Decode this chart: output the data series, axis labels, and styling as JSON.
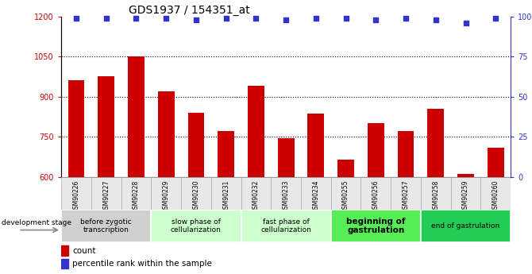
{
  "title": "GDS1937 / 154351_at",
  "samples": [
    "GSM90226",
    "GSM90227",
    "GSM90228",
    "GSM90229",
    "GSM90230",
    "GSM90231",
    "GSM90232",
    "GSM90233",
    "GSM90234",
    "GSM90255",
    "GSM90256",
    "GSM90257",
    "GSM90258",
    "GSM90259",
    "GSM90260"
  ],
  "counts": [
    960,
    975,
    1050,
    920,
    840,
    770,
    940,
    745,
    835,
    665,
    800,
    770,
    855,
    610,
    710
  ],
  "percentile_vals": [
    99,
    99,
    99,
    99,
    98,
    99,
    99,
    98,
    99,
    99,
    98,
    99,
    98,
    96,
    99
  ],
  "ylim": [
    600,
    1200
  ],
  "y2lim": [
    0,
    100
  ],
  "yticks": [
    600,
    750,
    900,
    1050,
    1200
  ],
  "y2ticks": [
    0,
    25,
    50,
    75,
    100
  ],
  "y2ticklabels": [
    "0",
    "25",
    "50",
    "75",
    "100%"
  ],
  "bar_color": "#cc0000",
  "dot_color": "#3333cc",
  "bar_width": 0.55,
  "stages": [
    {
      "label": "before zygotic\ntranscription",
      "samples": [
        "GSM90226",
        "GSM90227",
        "GSM90228"
      ],
      "color": "#d0d0d0"
    },
    {
      "label": "slow phase of\ncellularization",
      "samples": [
        "GSM90229",
        "GSM90230",
        "GSM90231"
      ],
      "color": "#ccffcc"
    },
    {
      "label": "fast phase of\ncellularization",
      "samples": [
        "GSM90232",
        "GSM90233",
        "GSM90234"
      ],
      "color": "#ccffcc"
    },
    {
      "label": "beginning of\ngastrulation",
      "samples": [
        "GSM90255",
        "GSM90256",
        "GSM90257"
      ],
      "color": "#55ee55"
    },
    {
      "label": "end of gastrulation",
      "samples": [
        "GSM90258",
        "GSM90259",
        "GSM90260"
      ],
      "color": "#22cc55"
    }
  ],
  "dev_stage_label": "development stage",
  "legend_count_label": "count",
  "legend_pct_label": "percentile rank within the sample",
  "grid_color": "#555555",
  "tick_label_color": "#888888",
  "left_axis_color": "#cc0000",
  "right_axis_color": "#3333cc",
  "tick_label_fontsize": 7,
  "title_fontsize": 10,
  "stage_fontsize": 6.5,
  "bold_stage_idx": 3
}
